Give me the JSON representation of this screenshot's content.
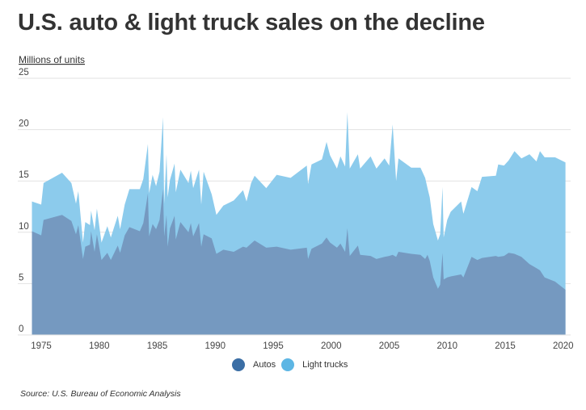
{
  "title": "U.S. auto & light truck sales on the decline",
  "source": "Source: U.S. Bureau of Economic Analysis",
  "colors": {
    "autos": "#3b6ea5",
    "autos_area": "#7599c0",
    "light_trucks": "#5db6e4",
    "light_trucks_area": "#8ccbec",
    "grid": "#e2e2e2"
  },
  "chart_data": {
    "type": "area",
    "stacked": true,
    "title": "U.S. auto & light truck sales on the decline",
    "xlabel": "",
    "ylabel": "Millions of units",
    "xlim": [
      1974.2,
      2020.5
    ],
    "ylim": [
      0,
      25
    ],
    "yticks": [
      0,
      5,
      10,
      15,
      20,
      25
    ],
    "xticks": [
      1975,
      1980,
      1985,
      1990,
      1995,
      2000,
      2005,
      2010,
      2015,
      2020
    ],
    "grid": "horizontal",
    "legend": "bottom-center",
    "x": [
      1974.2,
      1975.0,
      1975.2,
      1976.8,
      1977.6,
      1978.0,
      1978.2,
      1978.6,
      1978.8,
      1979.2,
      1979.3,
      1979.6,
      1979.8,
      1980.2,
      1980.7,
      1981.0,
      1981.6,
      1981.8,
      1982.2,
      1982.6,
      1983.5,
      1983.8,
      1984.2,
      1984.3,
      1984.6,
      1984.9,
      1985.2,
      1985.5,
      1985.6,
      1985.8,
      1985.9,
      1986.1,
      1986.5,
      1986.6,
      1987.0,
      1987.7,
      1987.9,
      1988.1,
      1988.6,
      1988.8,
      1989.0,
      1989.7,
      1990.1,
      1990.7,
      1991.6,
      1992.4,
      1992.7,
      1993.1,
      1993.4,
      1994.4,
      1995.3,
      1996.5,
      1997.9,
      1998.0,
      1998.3,
      1999.2,
      1999.6,
      1999.9,
      2000.5,
      2000.8,
      2001.2,
      2001.4,
      2001.6,
      2002.3,
      2002.5,
      2003.4,
      2003.9,
      2004.6,
      2005.0,
      2005.3,
      2005.6,
      2005.8,
      2006.9,
      2007.7,
      2008.1,
      2008.3,
      2008.5,
      2008.8,
      2009.2,
      2009.4,
      2009.6,
      2009.7,
      2010.0,
      2010.3,
      2011.2,
      2011.4,
      2012.1,
      2012.6,
      2013.0,
      2014.2,
      2014.4,
      2014.9,
      2015.3,
      2015.8,
      2016.4,
      2017.1,
      2017.7,
      2018.0,
      2018.4,
      2019.3,
      2020.2
    ],
    "series": [
      {
        "name": "Autos",
        "values": [
          10.1,
          9.7,
          11.2,
          11.7,
          11.1,
          9.8,
          10.7,
          7.4,
          8.6,
          8.8,
          10.1,
          8.1,
          9.8,
          7.3,
          8.0,
          7.3,
          8.7,
          8.0,
          9.7,
          10.5,
          10.1,
          10.9,
          13.8,
          9.6,
          10.8,
          10.3,
          11.2,
          14.2,
          9.6,
          11.7,
          8.6,
          10.4,
          11.6,
          9.3,
          11.0,
          10.0,
          10.9,
          9.6,
          10.9,
          8.6,
          9.8,
          9.4,
          7.9,
          8.3,
          8.1,
          8.6,
          8.5,
          8.9,
          9.2,
          8.5,
          8.6,
          8.3,
          8.5,
          7.4,
          8.4,
          8.9,
          9.5,
          9.0,
          8.5,
          8.9,
          8.1,
          10.4,
          7.7,
          8.7,
          7.8,
          7.7,
          7.4,
          7.6,
          7.7,
          7.8,
          7.6,
          8.1,
          7.9,
          7.8,
          7.4,
          7.8,
          7.2,
          5.6,
          4.5,
          4.9,
          8.0,
          5.4,
          5.6,
          5.7,
          5.9,
          5.6,
          7.6,
          7.3,
          7.5,
          7.7,
          7.6,
          7.7,
          8.0,
          7.9,
          7.6,
          6.9,
          6.5,
          6.3,
          5.6,
          5.2,
          4.4
        ]
      },
      {
        "name": "Light trucks",
        "values": [
          2.9,
          3.0,
          3.6,
          4.1,
          3.7,
          3.0,
          3.3,
          1.6,
          2.4,
          1.9,
          2.0,
          2.1,
          2.5,
          1.7,
          2.6,
          2.2,
          2.9,
          2.3,
          3.0,
          3.7,
          4.1,
          4.3,
          4.8,
          4.2,
          4.8,
          4.2,
          4.7,
          7.0,
          3.2,
          5.9,
          4.8,
          4.7,
          5.1,
          4.6,
          5.1,
          4.8,
          5.1,
          4.7,
          5.2,
          4.1,
          6.1,
          4.3,
          3.8,
          4.3,
          5.0,
          5.5,
          4.5,
          5.9,
          6.3,
          5.8,
          7.0,
          7.0,
          8.0,
          7.3,
          8.2,
          8.2,
          9.3,
          8.5,
          7.7,
          8.5,
          8.3,
          11.3,
          8.5,
          8.9,
          8.4,
          9.7,
          8.8,
          9.6,
          8.8,
          12.7,
          7.4,
          9.1,
          8.4,
          8.5,
          7.9,
          6.5,
          6.2,
          5.2,
          4.7,
          4.9,
          6.4,
          4.1,
          5.6,
          6.3,
          7.1,
          6.2,
          6.8,
          6.7,
          7.9,
          7.8,
          9.0,
          8.8,
          9.0,
          10.0,
          9.6,
          10.7,
          10.4,
          11.6,
          11.7,
          12.1,
          12.4
        ]
      }
    ]
  }
}
